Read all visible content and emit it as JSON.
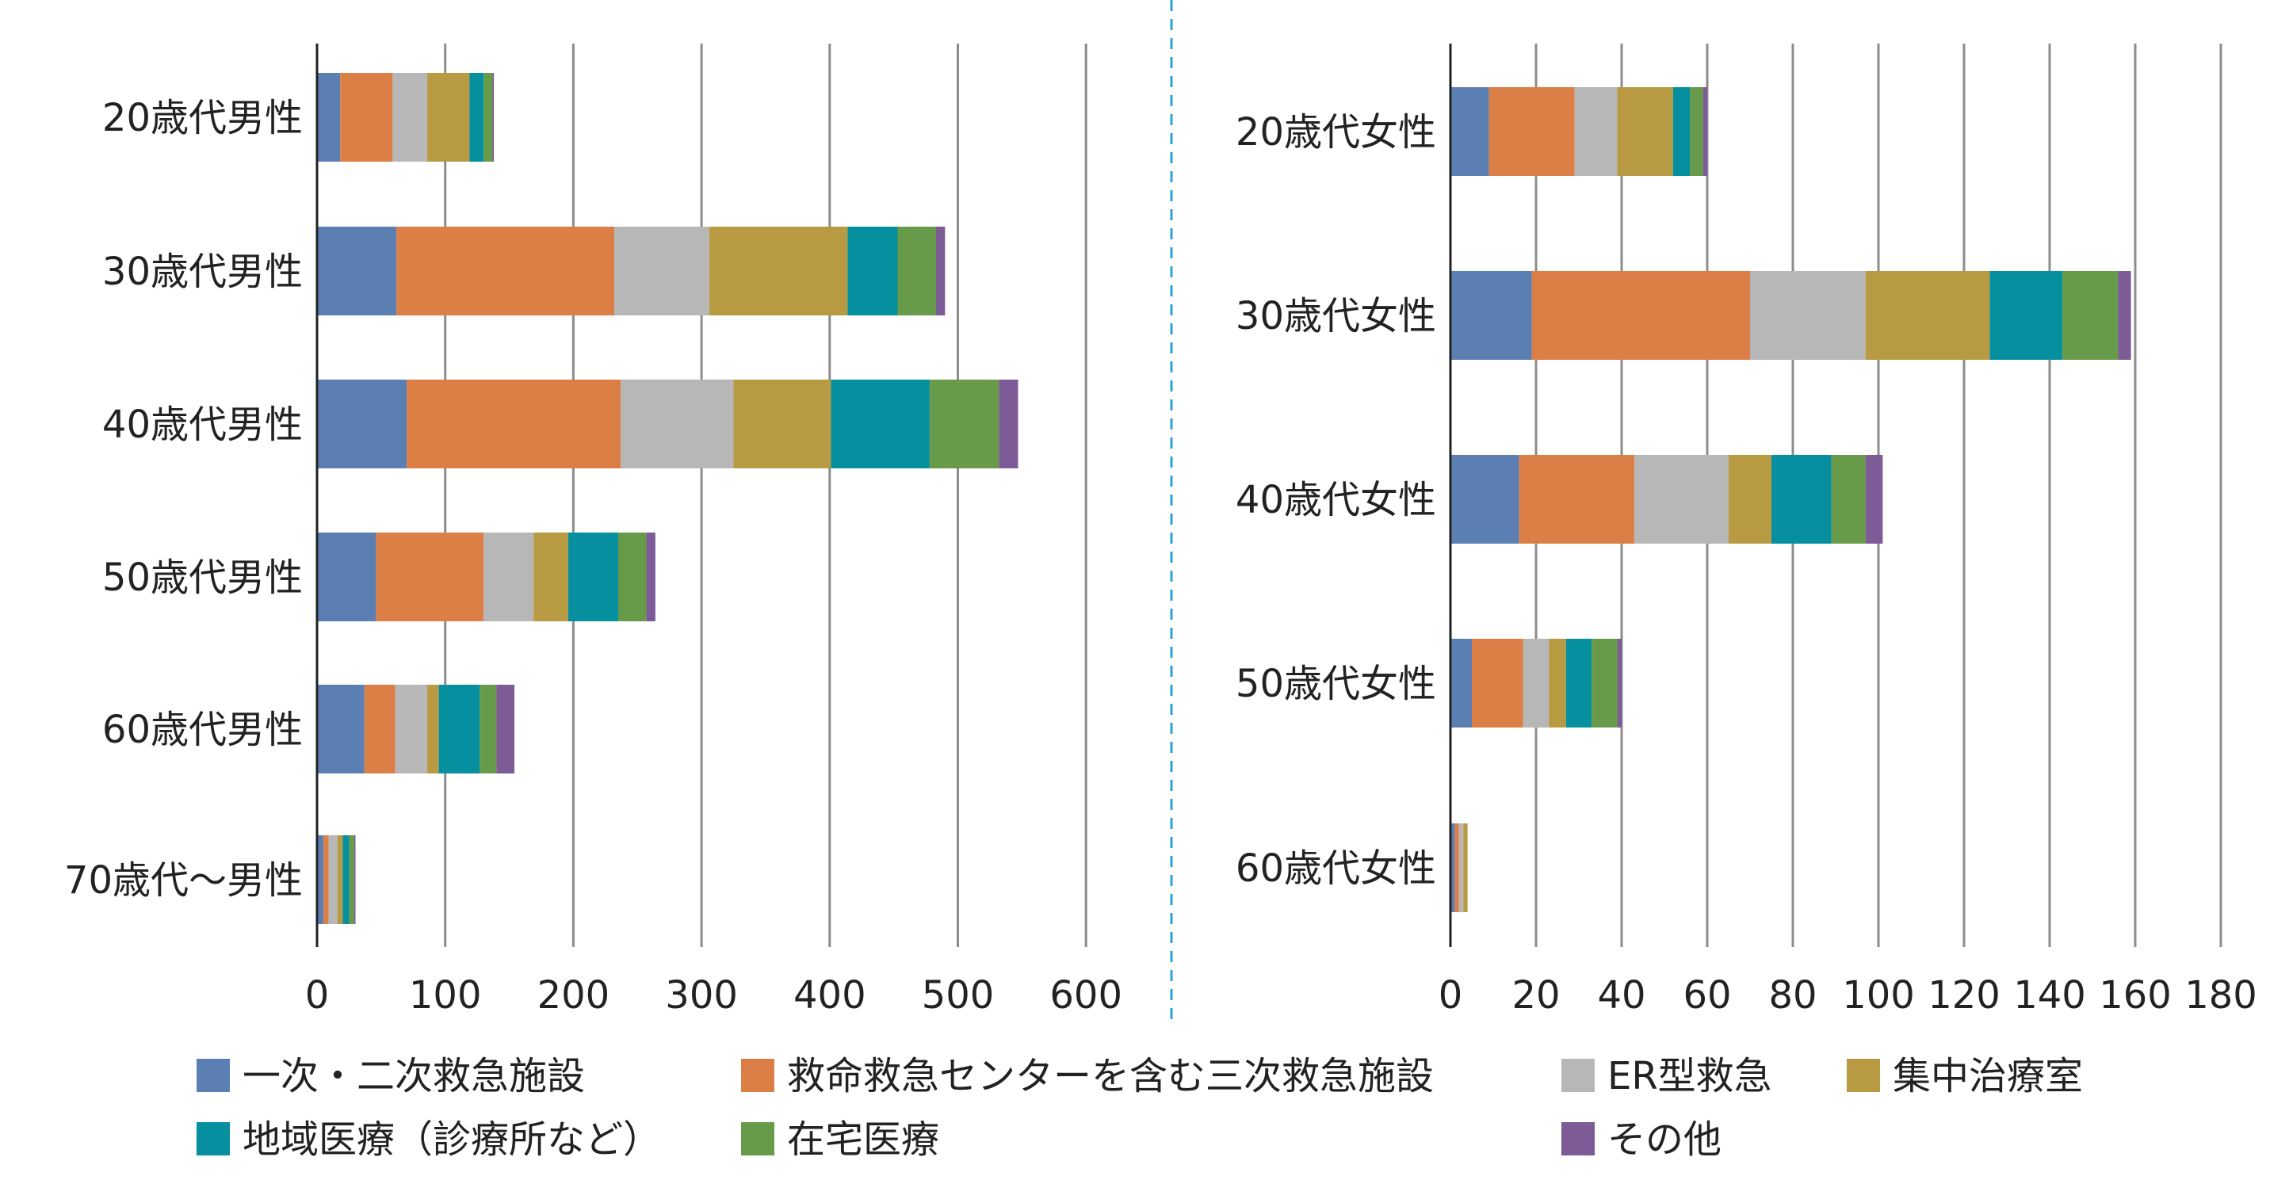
{
  "chart_data": [
    {
      "type": "bar",
      "orientation": "horizontal",
      "stacked": true,
      "categories": [
        "20歳代男性",
        "30歳代男性",
        "40歳代男性",
        "50歳代男性",
        "60歳代男性",
        "70歳代〜男性"
      ],
      "series": [
        {
          "name": "一次・二次救急施設",
          "values": [
            18,
            62,
            70,
            46,
            37,
            5
          ]
        },
        {
          "name": "救命救急センターを含む三次救急施設",
          "values": [
            41,
            170,
            167,
            84,
            24,
            4
          ]
        },
        {
          "name": "ER型救急",
          "values": [
            27,
            74,
            88,
            39,
            25,
            7
          ]
        },
        {
          "name": "集中治療室",
          "values": [
            33,
            108,
            76,
            27,
            9,
            4
          ]
        },
        {
          "name": "地域医療（診療所など）",
          "values": [
            11,
            39,
            77,
            39,
            32,
            5
          ]
        },
        {
          "name": "在宅医療",
          "values": [
            7,
            30,
            54,
            22,
            13,
            4
          ]
        },
        {
          "name": "その他",
          "values": [
            1,
            7,
            15,
            7,
            14,
            1
          ]
        }
      ],
      "xticks": [
        "0",
        "100",
        "200",
        "300",
        "400",
        "500",
        "600"
      ],
      "xlim": [
        0,
        600
      ],
      "grid": true
    },
    {
      "type": "bar",
      "orientation": "horizontal",
      "stacked": true,
      "categories": [
        "20歳代女性",
        "30歳代女性",
        "40歳代女性",
        "50歳代女性",
        "60歳代女性"
      ],
      "series": [
        {
          "name": "一次・二次救急施設",
          "values": [
            9,
            19,
            16,
            5,
            1
          ]
        },
        {
          "name": "救命救急センターを含む三次救急施設",
          "values": [
            20,
            51,
            27,
            12,
            1
          ]
        },
        {
          "name": "ER型救急",
          "values": [
            10,
            27,
            22,
            6,
            1
          ]
        },
        {
          "name": "集中治療室",
          "values": [
            13,
            29,
            10,
            4,
            1
          ]
        },
        {
          "name": "地域医療（診療所など）",
          "values": [
            4,
            17,
            14,
            6,
            0
          ]
        },
        {
          "name": "在宅医療",
          "values": [
            3,
            13,
            8,
            6,
            0
          ]
        },
        {
          "name": "その他",
          "values": [
            1,
            3,
            4,
            1,
            0
          ]
        }
      ],
      "xticks": [
        "0",
        "20",
        "40",
        "60",
        "80",
        "100",
        "120",
        "140",
        "160",
        "180"
      ],
      "xlim": [
        0,
        180
      ],
      "grid": true
    }
  ],
  "legend": {
    "placement": "bottom",
    "items": [
      {
        "label": "一次・二次救急施設",
        "color": "#5B7FB3"
      },
      {
        "label": "救命救急センターを含む三次救急施設",
        "color": "#DB7F47"
      },
      {
        "label": "ER型救急",
        "color": "#B7B7B7"
      },
      {
        "label": "集中治療室",
        "color": "#B79A41"
      },
      {
        "label": "地域医療（診療所など）",
        "color": "#068F9F"
      },
      {
        "label": "在宅医療",
        "color": "#679B49"
      },
      {
        "label": "その他",
        "color": "#7C5B96"
      }
    ]
  },
  "colors": {
    "grid": "#8C8C8C",
    "axis": "#222222",
    "divider": "#2AA3D6"
  }
}
